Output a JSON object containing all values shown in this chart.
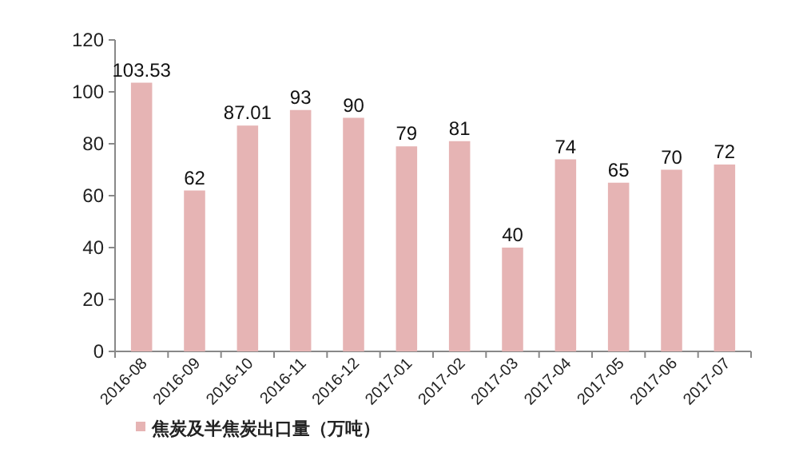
{
  "chart_data": {
    "type": "bar",
    "categories": [
      "2016-08",
      "2016-09",
      "2016-10",
      "2016-11",
      "2016-12",
      "2017-01",
      "2017-02",
      "2017-03",
      "2017-04",
      "2017-05",
      "2017-06",
      "2017-07"
    ],
    "series": [
      {
        "name": "焦炭及半焦炭出口量（万吨）",
        "color": "#e6b4b4",
        "values": [
          103.53,
          62,
          87.01,
          93,
          90,
          79,
          81,
          40,
          74,
          65,
          70,
          72
        ]
      }
    ],
    "value_labels": [
      "103.53",
      "62",
      "87.01",
      "93",
      "90",
      "79",
      "81",
      "40",
      "74",
      "65",
      "70",
      "72"
    ],
    "ylim": [
      0,
      120
    ],
    "yticks": [
      0,
      20,
      40,
      60,
      80,
      100,
      120
    ],
    "legend": "bottom left",
    "grid": false
  }
}
